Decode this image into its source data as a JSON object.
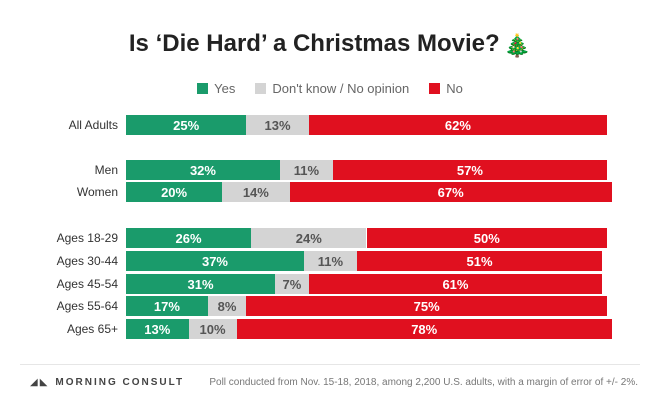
{
  "title": "Is ‘Die Hard’ a Christmas Movie?",
  "title_icon": "christmas-tree-icon",
  "legend": [
    {
      "label": "Yes",
      "color": "#1a9b6b"
    },
    {
      "label": "Don't know / No opinion",
      "color": "#d4d4d4"
    },
    {
      "label": "No",
      "color": "#e0101f"
    }
  ],
  "footer": {
    "logo": "MORNING CONSULT",
    "note": "Poll conducted from Nov. 15-18, 2018, among 2,200 U.S. adults, with a margin of error of +/- 2%."
  },
  "chart_data": {
    "type": "bar",
    "orientation": "horizontal",
    "stacked": true,
    "normalized_to_100": true,
    "categories": [
      "All Adults",
      "Men",
      "Women",
      "Ages 18-29",
      "Ages 30-44",
      "Ages 45-54",
      "Ages 55-64",
      "Ages 65+"
    ],
    "groups": [
      [
        "All Adults"
      ],
      [
        "Men",
        "Women"
      ],
      [
        "Ages 18-29",
        "Ages 30-44",
        "Ages 45-54",
        "Ages 55-64",
        "Ages 65+"
      ]
    ],
    "series": [
      {
        "name": "Yes",
        "color": "#1a9b6b",
        "values": [
          25,
          32,
          20,
          26,
          37,
          31,
          17,
          13
        ]
      },
      {
        "name": "Don't know / No opinion",
        "color": "#d4d4d4",
        "values": [
          13,
          11,
          14,
          24,
          11,
          7,
          8,
          10
        ]
      },
      {
        "name": "No",
        "color": "#e0101f",
        "values": [
          62,
          57,
          67,
          50,
          51,
          61,
          75,
          78
        ]
      }
    ],
    "value_labels": [
      [
        "25%",
        "13%",
        "62%"
      ],
      [
        "32%",
        "11%",
        "57%"
      ],
      [
        "20%",
        "14%",
        "67%"
      ],
      [
        "26%",
        "24%",
        "50%"
      ],
      [
        "37%",
        "11%",
        "51%"
      ],
      [
        "31%",
        "7%",
        "61%"
      ],
      [
        "17%",
        "8%",
        "75%"
      ],
      [
        "13%",
        "10%",
        "78%"
      ]
    ],
    "title": "Is ‘Die Hard’ a Christmas Movie?",
    "xlabel": "",
    "ylabel": "",
    "legend_position": "top"
  }
}
